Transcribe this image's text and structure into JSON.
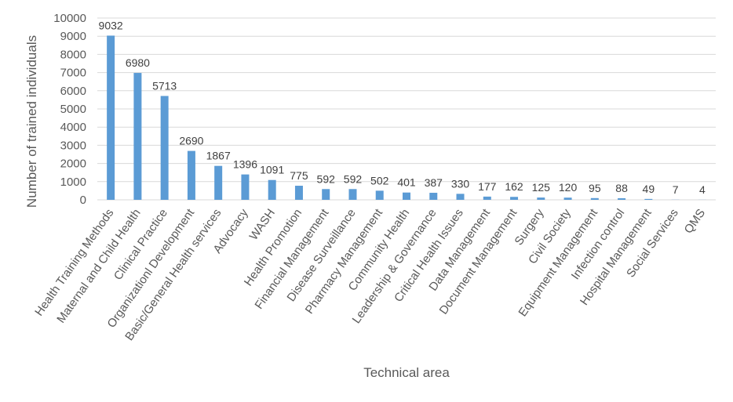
{
  "chart_data": {
    "type": "bar",
    "title": "",
    "xlabel": "Technical area",
    "ylabel": "Number of trained individuals",
    "ylim": [
      0,
      10000
    ],
    "ytick_step": 1000,
    "grid": true,
    "bar_color": "#5b9bd5",
    "categories": [
      "Health Training Methods",
      "Maternal and Child Health",
      "Clinical Practice",
      "Organizationl Development",
      "Basic/General Health services",
      "Advocacy",
      "WASH",
      "Health Promotion",
      "Financial Management",
      "Disease Surveillance",
      "Pharmacy Management",
      "Community Health",
      "Leadership & Governance",
      "Critical Health Issues",
      "Data Management",
      "Document Management",
      "Surgery",
      "Civil Society",
      "Equipment Management",
      "Infection control",
      "Hospital Management",
      "Social Services",
      "QMS"
    ],
    "values": [
      9032,
      6980,
      5713,
      2690,
      1867,
      1396,
      1091,
      775,
      592,
      592,
      502,
      401,
      387,
      330,
      177,
      162,
      125,
      120,
      95,
      88,
      49,
      7,
      4
    ]
  }
}
